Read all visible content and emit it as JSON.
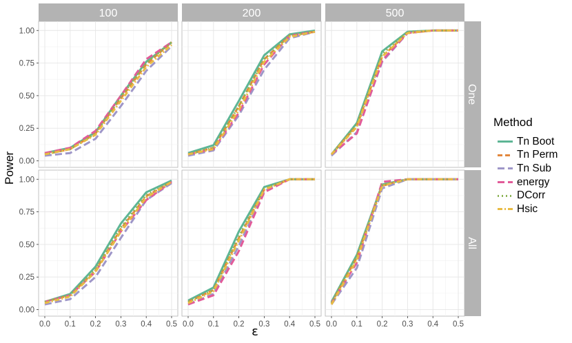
{
  "chart_data": {
    "type": "line",
    "xlabel": "ε",
    "ylabel": "Power",
    "xlim": [
      0.0,
      0.5
    ],
    "ylim": [
      0.0,
      1.0
    ],
    "x_ticks": [
      "0.0",
      "0.1",
      "0.2",
      "0.3",
      "0.4",
      "0.5"
    ],
    "y_ticks": [
      "0.00",
      "0.25",
      "0.50",
      "0.75",
      "1.00"
    ],
    "grid": true,
    "legend_title": "Method",
    "legend_position": "right",
    "column_facets": [
      "100",
      "200",
      "500"
    ],
    "row_facets": [
      "One",
      "All"
    ],
    "x": [
      0.0,
      0.1,
      0.2,
      0.3,
      0.4,
      0.5
    ],
    "methods": [
      {
        "name": "Tn Boot",
        "color": "#5DB595",
        "dash": "solid"
      },
      {
        "name": "Tn Perm",
        "color": "#E2873C",
        "dash": "dashed"
      },
      {
        "name": "Tn Sub",
        "color": "#9E96C8",
        "dash": "longdash"
      },
      {
        "name": "energy",
        "color": "#E25B99",
        "dash": "longdash"
      },
      {
        "name": "DCorr",
        "color": "#8CB355",
        "dash": "dotted"
      },
      {
        "name": "Hsic",
        "color": "#E9BB43",
        "dash": "dashdot"
      }
    ],
    "panels": [
      {
        "column": "100",
        "row": "One",
        "series": [
          {
            "name": "Tn Boot",
            "values": [
              0.06,
              0.1,
              0.22,
              0.5,
              0.76,
              0.91
            ]
          },
          {
            "name": "Tn Perm",
            "values": [
              0.05,
              0.09,
              0.21,
              0.48,
              0.74,
              0.91
            ]
          },
          {
            "name": "Tn Sub",
            "values": [
              0.04,
              0.06,
              0.17,
              0.42,
              0.69,
              0.88
            ]
          },
          {
            "name": "energy",
            "values": [
              0.06,
              0.1,
              0.23,
              0.5,
              0.78,
              0.91
            ]
          },
          {
            "name": "DCorr",
            "values": [
              0.05,
              0.09,
              0.21,
              0.49,
              0.75,
              0.91
            ]
          },
          {
            "name": "Hsic",
            "values": [
              0.05,
              0.09,
              0.2,
              0.46,
              0.72,
              0.89
            ]
          }
        ]
      },
      {
        "column": "200",
        "row": "One",
        "series": [
          {
            "name": "Tn Boot",
            "values": [
              0.06,
              0.12,
              0.46,
              0.81,
              0.97,
              1.0
            ]
          },
          {
            "name": "Tn Perm",
            "values": [
              0.05,
              0.1,
              0.42,
              0.78,
              0.96,
              0.99
            ]
          },
          {
            "name": "Tn Sub",
            "values": [
              0.04,
              0.08,
              0.35,
              0.7,
              0.94,
              0.99
            ]
          },
          {
            "name": "energy",
            "values": [
              0.05,
              0.09,
              0.37,
              0.74,
              0.96,
              0.99
            ]
          },
          {
            "name": "DCorr",
            "values": [
              0.05,
              0.1,
              0.42,
              0.78,
              0.96,
              0.99
            ]
          },
          {
            "name": "Hsic",
            "values": [
              0.05,
              0.09,
              0.39,
              0.76,
              0.95,
              0.99
            ]
          }
        ]
      },
      {
        "column": "500",
        "row": "One",
        "series": [
          {
            "name": "Tn Boot",
            "values": [
              0.05,
              0.29,
              0.84,
              0.99,
              1.0,
              1.0
            ]
          },
          {
            "name": "Tn Perm",
            "values": [
              0.05,
              0.27,
              0.8,
              0.98,
              1.0,
              1.0
            ]
          },
          {
            "name": "Tn Sub",
            "values": [
              0.04,
              0.22,
              0.76,
              0.98,
              1.0,
              1.0
            ]
          },
          {
            "name": "energy",
            "values": [
              0.05,
              0.21,
              0.77,
              0.98,
              1.0,
              1.0
            ]
          },
          {
            "name": "DCorr",
            "values": [
              0.05,
              0.28,
              0.82,
              0.99,
              1.0,
              1.0
            ]
          },
          {
            "name": "Hsic",
            "values": [
              0.05,
              0.26,
              0.8,
              0.98,
              1.0,
              1.0
            ]
          }
        ]
      },
      {
        "column": "100",
        "row": "All",
        "series": [
          {
            "name": "Tn Boot",
            "values": [
              0.06,
              0.12,
              0.33,
              0.66,
              0.9,
              0.99
            ]
          },
          {
            "name": "Tn Perm",
            "values": [
              0.06,
              0.11,
              0.3,
              0.62,
              0.87,
              0.98
            ]
          },
          {
            "name": "Tn Sub",
            "values": [
              0.04,
              0.08,
              0.25,
              0.55,
              0.84,
              0.97
            ]
          },
          {
            "name": "energy",
            "values": [
              0.06,
              0.11,
              0.29,
              0.6,
              0.84,
              0.98
            ]
          },
          {
            "name": "DCorr",
            "values": [
              0.06,
              0.11,
              0.31,
              0.63,
              0.88,
              0.98
            ]
          },
          {
            "name": "Hsic",
            "values": [
              0.05,
              0.1,
              0.29,
              0.6,
              0.86,
              0.98
            ]
          }
        ]
      },
      {
        "column": "200",
        "row": "All",
        "series": [
          {
            "name": "Tn Boot",
            "values": [
              0.07,
              0.17,
              0.6,
              0.94,
              1.0,
              1.0
            ]
          },
          {
            "name": "Tn Perm",
            "values": [
              0.06,
              0.15,
              0.55,
              0.92,
              1.0,
              1.0
            ]
          },
          {
            "name": "Tn Sub",
            "values": [
              0.04,
              0.12,
              0.49,
              0.91,
              1.0,
              1.0
            ]
          },
          {
            "name": "energy",
            "values": [
              0.04,
              0.11,
              0.45,
              0.9,
              1.0,
              1.0
            ]
          },
          {
            "name": "DCorr",
            "values": [
              0.06,
              0.15,
              0.56,
              0.93,
              1.0,
              1.0
            ]
          },
          {
            "name": "Hsic",
            "values": [
              0.05,
              0.14,
              0.53,
              0.92,
              1.0,
              1.0
            ]
          }
        ]
      },
      {
        "column": "500",
        "row": "All",
        "series": [
          {
            "name": "Tn Boot",
            "values": [
              0.06,
              0.42,
              0.96,
              1.0,
              1.0,
              1.0
            ]
          },
          {
            "name": "Tn Perm",
            "values": [
              0.05,
              0.4,
              0.95,
              1.0,
              1.0,
              1.0
            ]
          },
          {
            "name": "Tn Sub",
            "values": [
              0.04,
              0.32,
              0.93,
              1.0,
              1.0,
              1.0
            ]
          },
          {
            "name": "energy",
            "values": [
              0.05,
              0.36,
              0.98,
              1.0,
              1.0,
              1.0
            ]
          },
          {
            "name": "DCorr",
            "values": [
              0.05,
              0.41,
              0.96,
              1.0,
              1.0,
              1.0
            ]
          },
          {
            "name": "Hsic",
            "values": [
              0.04,
              0.38,
              0.95,
              1.0,
              1.0,
              1.0
            ]
          }
        ]
      }
    ]
  }
}
